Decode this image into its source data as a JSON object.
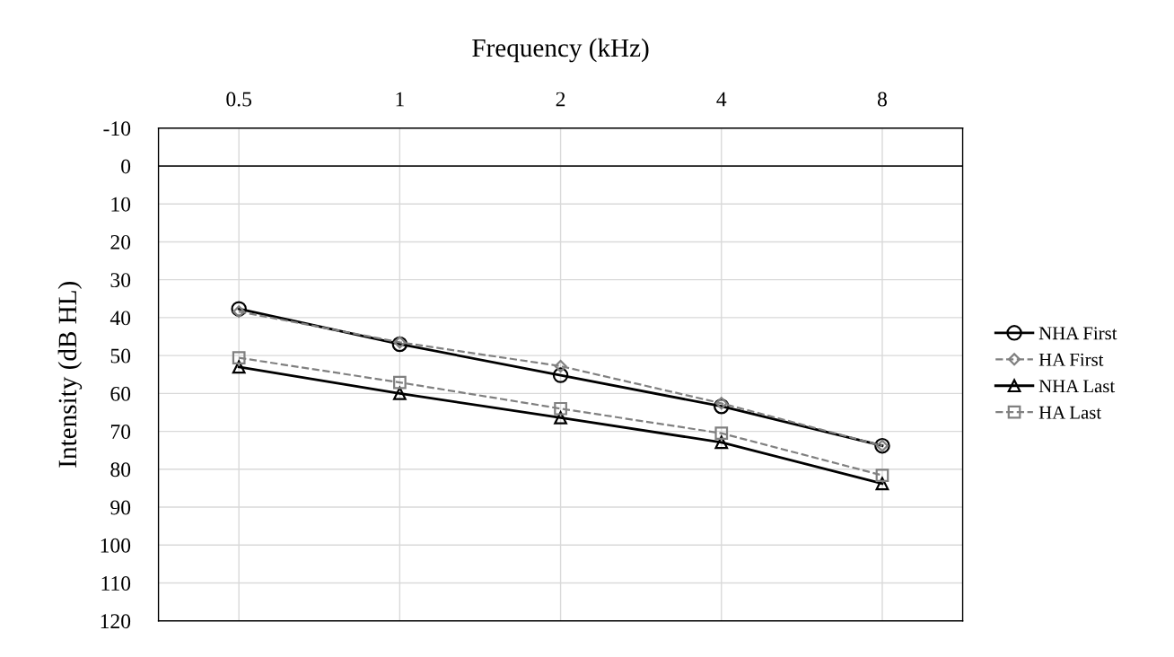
{
  "chart_data": {
    "type": "line",
    "xlabel": "Frequency (kHz)",
    "ylabel": "Intensity (dB HL)",
    "categories": [
      "0.5",
      "1",
      "2",
      "4",
      "8"
    ],
    "ylim": [
      120,
      -10
    ],
    "yticks": [
      -10,
      0,
      10,
      20,
      30,
      40,
      50,
      60,
      70,
      80,
      90,
      100,
      110,
      120
    ],
    "grid": true,
    "legend": "right",
    "ref_lines": [
      {
        "axis": "y",
        "value": 0,
        "color": "#000000"
      }
    ],
    "series": [
      {
        "name": "NHA First",
        "color": "#000000",
        "marker": "circle",
        "line_style": "solid",
        "values": [
          37.7,
          47,
          55.2,
          63.4,
          73.8
        ]
      },
      {
        "name": "HA First",
        "color": "#808080",
        "marker": "diamond",
        "line_style": "dashed",
        "values": [
          38.4,
          46.5,
          52.8,
          62.6,
          73.8
        ]
      },
      {
        "name": "NHA Last",
        "color": "#000000",
        "marker": "triangle",
        "line_style": "solid",
        "values": [
          53,
          60,
          66.4,
          72.9,
          83.8
        ]
      },
      {
        "name": "HA Last",
        "color": "#808080",
        "marker": "square",
        "line_style": "dashed",
        "values": [
          50.6,
          57.1,
          64,
          70.5,
          81.6
        ]
      }
    ]
  }
}
